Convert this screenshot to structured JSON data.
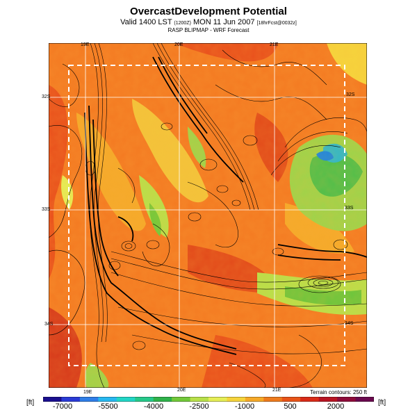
{
  "header": {
    "title": "OvercastDevelopment Potential",
    "subtitle_main": "Valid 1400 LST",
    "subtitle_code": "(1200Z)",
    "subtitle_date": "MON 11 Jun 2007",
    "subtitle_forecast": "[18hrFcst@0032z]",
    "subtitle2": "RASP BLIPMAP - WRF Forecast"
  },
  "map": {
    "lon_labels_top": [
      "19E",
      "20E",
      "21E"
    ],
    "lon_labels_bottom": [
      "19E",
      "20E",
      "21E"
    ],
    "lat_labels_left": [
      "32S",
      "33S",
      "34S"
    ],
    "lat_labels_right": [
      "32S",
      "33S",
      "34S"
    ],
    "terrain_note": "Terrain contours: 250 ft"
  },
  "colorbar": {
    "unit_left": "[ft]",
    "unit_right": "[ft]",
    "labels": [
      "-7000",
      "-5500",
      "-4000",
      "-2500",
      "-1000",
      "500",
      "2000"
    ],
    "colors": [
      "#1a0f8f",
      "#2a3bd6",
      "#2f7ee8",
      "#27b8f0",
      "#22d6c6",
      "#26c98a",
      "#2fb24a",
      "#72c93a",
      "#b8e04a",
      "#e5ee56",
      "#f6d43c",
      "#f6a928",
      "#ee7b1d",
      "#e85418",
      "#d92b18",
      "#b81422",
      "#8e0c3a",
      "#6a0a4e"
    ]
  },
  "colors": {
    "background": "#ffffff",
    "dashed_box": "#ffffff"
  }
}
